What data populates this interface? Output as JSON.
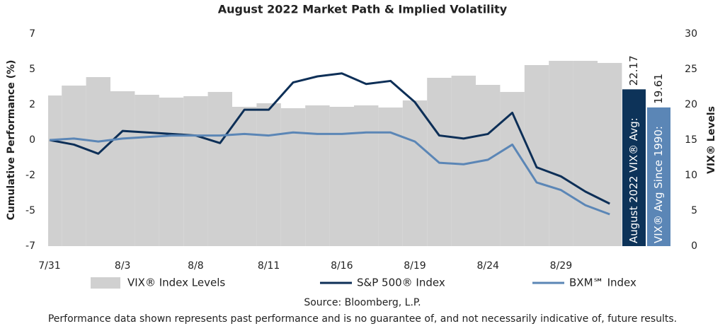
{
  "chart_data": {
    "type": "combo",
    "title": "August 2022 Market Path & Implied Volatility",
    "y_label": "Cumulative Performance (%)",
    "y2_label": "VIX® Levels",
    "categories": [
      "7/31",
      null,
      null,
      "8/3",
      null,
      null,
      "8/8",
      null,
      null,
      "8/11",
      null,
      null,
      "8/16",
      null,
      null,
      "8/19",
      null,
      null,
      "8/24",
      null,
      null,
      "8/29",
      null,
      null
    ],
    "ylim": [
      -7,
      7
    ],
    "yticks": [
      {
        "value": -7,
        "label": "-7"
      },
      {
        "value": -4.667,
        "label": "-5"
      },
      {
        "value": -2.333,
        "label": "-2"
      },
      0,
      {
        "value": 2.333,
        "label": "2"
      },
      {
        "value": 4.667,
        "label": "5"
      },
      7
    ],
    "y2lim": [
      0,
      30
    ],
    "y2ticks": [
      0,
      5,
      10,
      15,
      20,
      25,
      30
    ],
    "series": [
      {
        "name": "VIX® Index Levels",
        "type": "bar",
        "axis": "y2",
        "color": "#d0d0d0",
        "values": [
          21.3,
          22.7,
          23.9,
          21.9,
          21.4,
          21.0,
          21.2,
          21.8,
          19.7,
          20.2,
          19.5,
          19.9,
          19.7,
          19.9,
          19.6,
          20.6,
          23.8,
          24.1,
          22.8,
          21.8,
          25.6,
          26.2,
          26.2,
          25.9
        ]
      },
      {
        "name": "S&P 500® Index",
        "type": "line",
        "color": "#0d2f57",
        "values": [
          0,
          -0.3,
          -0.9,
          0.6,
          0.5,
          0.4,
          0.3,
          -0.2,
          2.0,
          2.0,
          3.8,
          4.2,
          4.4,
          3.7,
          3.9,
          2.5,
          0.3,
          0.1,
          0.4,
          1.8,
          -1.8,
          -2.4,
          -3.4,
          -4.2
        ]
      },
      {
        "name": "BXM℠ Index",
        "type": "line",
        "color": "#5b86b6",
        "values": [
          0,
          0.1,
          -0.1,
          0.1,
          0.2,
          0.3,
          0.3,
          0.3,
          0.4,
          0.3,
          0.5,
          0.4,
          0.4,
          0.5,
          0.5,
          -0.1,
          -1.5,
          -1.6,
          -1.3,
          -0.3,
          -2.8,
          -3.3,
          -4.3,
          -4.9
        ]
      }
    ],
    "reference_bars": [
      {
        "name": "August 2022 VIX® Avg:",
        "value": 22.17,
        "color": "#0d3359"
      },
      {
        "name": "VIX® Avg Since 1990:",
        "value": 19.61,
        "color": "#5b86b6"
      }
    ],
    "source": "Source: Bloomberg, L.P.",
    "footnote": "Performance data shown represents past performance and is no guarantee of, and not necessarily indicative of, future results."
  }
}
